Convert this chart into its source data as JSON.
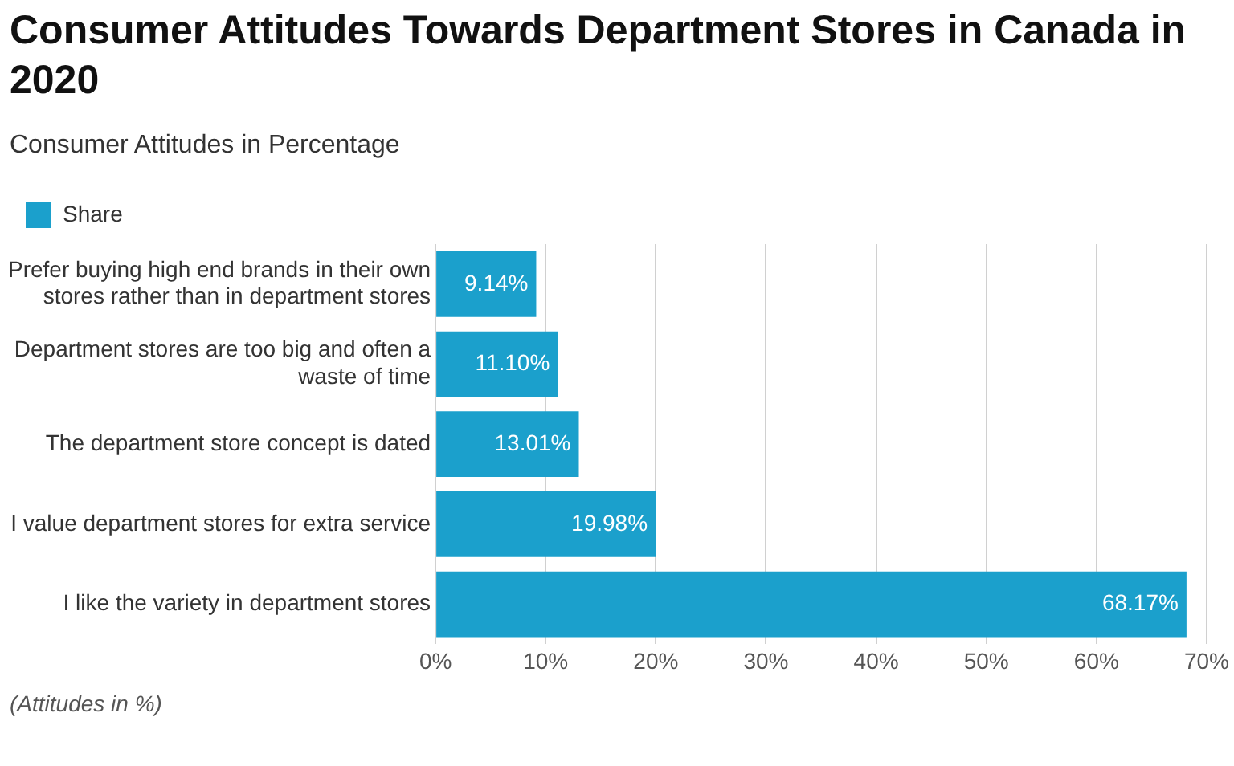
{
  "chart_data": {
    "type": "bar",
    "orientation": "horizontal",
    "title": "Consumer Attitudes Towards Department Stores in Canada in 2020",
    "subtitle": "Consumer Attitudes in Percentage",
    "categories": [
      "Prefer buying high end brands in their own stores rather than in department stores",
      "Department stores are too big and often a waste of time",
      "The department store concept is dated",
      "I value department stores for extra service",
      "I like the variety in department stores"
    ],
    "series": [
      {
        "name": "Share",
        "color": "#1ba0cc",
        "values": [
          9.14,
          11.1,
          13.01,
          19.98,
          68.17
        ],
        "value_labels": [
          "9.14%",
          "11.10%",
          "13.01%",
          "19.98%",
          "68.17%"
        ]
      }
    ],
    "xlim": [
      0,
      70
    ],
    "xticks": [
      {
        "value": 0,
        "label": "0%"
      },
      {
        "value": 10,
        "label": "10%"
      },
      {
        "value": 20,
        "label": "20%"
      },
      {
        "value": 30,
        "label": "30%"
      },
      {
        "value": 40,
        "label": "40%"
      },
      {
        "value": 50,
        "label": "50%"
      },
      {
        "value": 60,
        "label": "60%"
      },
      {
        "value": 70,
        "label": "70%"
      }
    ],
    "grid": "x",
    "legend": "top left",
    "annotations": [
      "(Attitudes in %)"
    ]
  }
}
